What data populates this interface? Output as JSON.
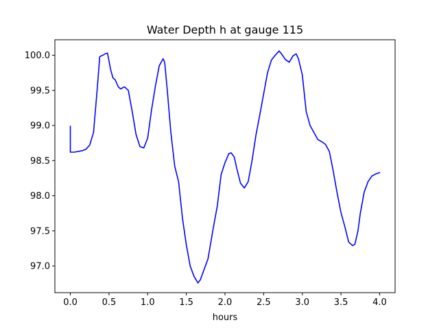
{
  "chart_data": {
    "type": "line",
    "title": "Water Depth h at gauge 115",
    "xlabel": "hours",
    "ylabel": "",
    "xlim": [
      -0.2,
      4.2
    ],
    "ylim": [
      96.62,
      100.22
    ],
    "xticks": [
      0.0,
      0.5,
      1.0,
      1.5,
      2.0,
      2.5,
      3.0,
      3.5,
      4.0
    ],
    "xtick_labels": [
      "0.0",
      "0.5",
      "1.0",
      "1.5",
      "2.0",
      "2.5",
      "3.0",
      "3.5",
      "4.0"
    ],
    "yticks": [
      97.0,
      97.5,
      98.0,
      98.5,
      99.0,
      99.5,
      100.0
    ],
    "ytick_labels": [
      "97.0",
      "97.5",
      "98.0",
      "98.5",
      "99.0",
      "99.5",
      "100.0"
    ],
    "grid": false,
    "legend": "none",
    "series": [
      {
        "color": "#0000ff",
        "x": [
          0.0,
          0.0,
          0.05,
          0.1,
          0.15,
          0.2,
          0.25,
          0.3,
          0.35,
          0.38,
          0.42,
          0.45,
          0.48,
          0.5,
          0.52,
          0.55,
          0.58,
          0.62,
          0.65,
          0.7,
          0.75,
          0.8,
          0.85,
          0.9,
          0.95,
          1.0,
          1.05,
          1.1,
          1.15,
          1.2,
          1.22,
          1.25,
          1.3,
          1.35,
          1.4,
          1.45,
          1.5,
          1.55,
          1.6,
          1.65,
          1.68,
          1.72,
          1.78,
          1.85,
          1.9,
          1.95,
          2.0,
          2.05,
          2.08,
          2.12,
          2.15,
          2.2,
          2.25,
          2.3,
          2.35,
          2.4,
          2.45,
          2.5,
          2.55,
          2.6,
          2.65,
          2.7,
          2.73,
          2.78,
          2.83,
          2.88,
          2.92,
          2.95,
          3.0,
          3.05,
          3.1,
          3.15,
          3.2,
          3.25,
          3.3,
          3.35,
          3.4,
          3.45,
          3.5,
          3.55,
          3.6,
          3.65,
          3.68,
          3.72,
          3.75,
          3.8,
          3.85,
          3.9,
          3.95,
          4.0
        ],
        "y": [
          98.99,
          98.62,
          98.62,
          98.63,
          98.64,
          98.66,
          98.72,
          98.9,
          99.55,
          99.98,
          100.0,
          100.02,
          100.03,
          99.92,
          99.8,
          99.68,
          99.65,
          99.55,
          99.52,
          99.55,
          99.5,
          99.2,
          98.87,
          98.7,
          98.68,
          98.82,
          99.22,
          99.56,
          99.85,
          99.95,
          99.9,
          99.55,
          98.9,
          98.42,
          98.2,
          97.68,
          97.3,
          97.0,
          96.85,
          96.76,
          96.8,
          96.92,
          97.1,
          97.55,
          97.85,
          98.3,
          98.47,
          98.6,
          98.61,
          98.55,
          98.4,
          98.18,
          98.11,
          98.2,
          98.5,
          98.86,
          99.15,
          99.45,
          99.75,
          99.93,
          100.0,
          100.06,
          100.02,
          99.94,
          99.9,
          99.99,
          100.02,
          99.95,
          99.72,
          99.2,
          99.0,
          98.9,
          98.8,
          98.77,
          98.73,
          98.63,
          98.35,
          98.04,
          97.76,
          97.56,
          97.34,
          97.29,
          97.31,
          97.5,
          97.75,
          98.05,
          98.2,
          98.28,
          98.31,
          98.33
        ]
      }
    ]
  }
}
